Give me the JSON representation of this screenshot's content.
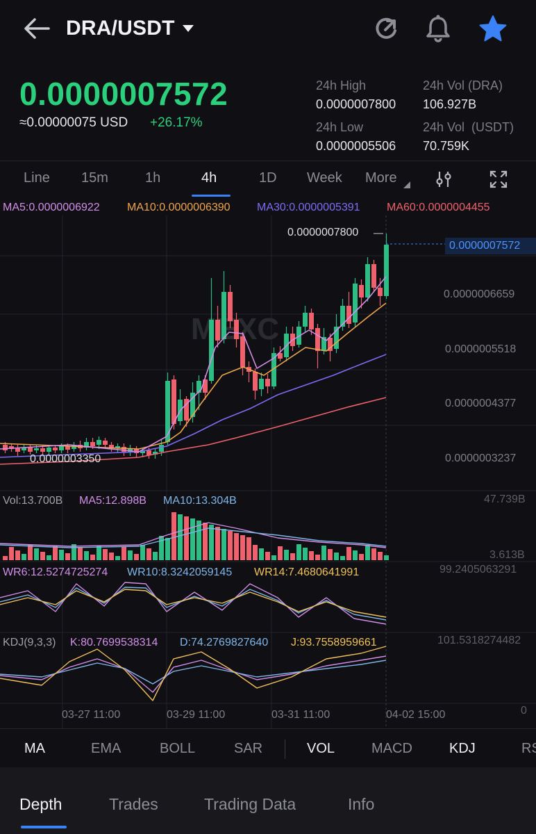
{
  "header": {
    "pair": "DRA/USDT"
  },
  "ticker": {
    "last_price": "0.0000007572",
    "usd_equiv": "≈0.00000075 USD",
    "change_pct": "+26.17%",
    "stats": [
      {
        "label": "24h High",
        "value": "0.0000007800"
      },
      {
        "label": "24h Vol (DRA)",
        "value": "106.927B"
      },
      {
        "label": "24h Low",
        "value": "0.0000005506"
      },
      {
        "label": "24h Vol  (USDT)",
        "value": "70.759K"
      }
    ]
  },
  "timeframes": [
    "Line",
    "15m",
    "1h",
    "4h",
    "1D",
    "Week",
    "More"
  ],
  "active_timeframe": "4h",
  "price_chart": {
    "ma_legend": [
      {
        "text": "MA5:0.0000006922",
        "color": "#d28ee8"
      },
      {
        "text": "MA10:0.0000006390",
        "color": "#f0a44c"
      },
      {
        "text": "MA30:0.0000005391",
        "color": "#7c6cf6"
      },
      {
        "text": "MA60:0.0000004455",
        "color": "#f0616e"
      }
    ],
    "y_axis_labels": [
      "0.0000006659",
      "0.0000005518",
      "0.0000004377",
      "0.0000003237"
    ],
    "high_marker": "0.0000007800",
    "low_marker": "0.0000003350",
    "last_price_tag": "0.0000007572",
    "watermark": "MEXC"
  },
  "volume": {
    "legend": [
      {
        "text": "Vol:13.700B",
        "color": "#a0a1a8"
      },
      {
        "text": "MA5:12.898B",
        "color": "#d28ee8"
      },
      {
        "text": "MA10:13.304B",
        "color": "#7fb6ea"
      }
    ],
    "max_label": "47.739B",
    "min_label": "3.613B"
  },
  "wr": {
    "legend": [
      {
        "text": "WR6:12.5274725274",
        "color": "#d28ee8"
      },
      {
        "text": "WR10:8.3242059145",
        "color": "#7fb6ea"
      },
      {
        "text": "WR14:7.4680641991",
        "color": "#f0c05a"
      }
    ],
    "max_label": "99.2405063291"
  },
  "kdj": {
    "legend": [
      {
        "text": "KDJ(9,3,3)",
        "color": "#a0a1a8"
      },
      {
        "text": "K:80.7699538314",
        "color": "#d28ee8"
      },
      {
        "text": "D:74.2769827640",
        "color": "#7fb6ea"
      },
      {
        "text": "J:93.7558959661",
        "color": "#f0c05a"
      }
    ],
    "max_label": "101.5318274482",
    "min_label": "0"
  },
  "x_axis_labels": [
    "03-27 11:00",
    "03-29 11:00",
    "03-31 11:00",
    "04-02 15:00"
  ],
  "indicator_tabs": [
    {
      "label": "MA",
      "on": true
    },
    {
      "label": "EMA",
      "on": false
    },
    {
      "label": "BOLL",
      "on": false
    },
    {
      "label": "SAR",
      "on": false
    },
    {
      "label": "VOL",
      "on": true
    },
    {
      "label": "MACD",
      "on": false
    },
    {
      "label": "KDJ",
      "on": true
    },
    {
      "label": "RS",
      "on": false
    }
  ],
  "bottom_tabs": [
    "Depth",
    "Trades",
    "Trading Data",
    "Info"
  ],
  "active_bottom_tab": "Depth",
  "colors": {
    "up": "#2ebd85",
    "down": "#f0616e",
    "accent": "#3b82f6",
    "price_green": "#2bd07c"
  }
}
